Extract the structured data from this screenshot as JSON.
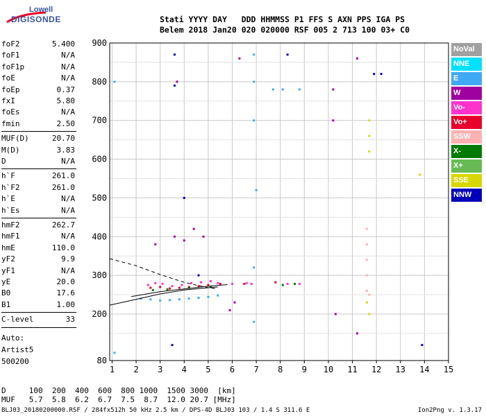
{
  "logo": {
    "line1": "Lowell",
    "line2": "DIGISONDE"
  },
  "header": {
    "labels": [
      "Stati",
      "YYYY",
      "DAY",
      "DDD",
      "HHMMSS",
      "P1",
      "FFS",
      "S",
      "AXN",
      "PPS",
      "IGA",
      "PS"
    ],
    "values": [
      "Belem",
      "2018",
      "Jan20",
      "020",
      "020000",
      "RSF",
      "005",
      "2",
      "713",
      "100",
      "03+",
      "C0"
    ]
  },
  "params": {
    "group1": [
      {
        "k": "foF2",
        "v": "5.400"
      },
      {
        "k": "foF1",
        "v": "N/A"
      },
      {
        "k": "foF1p",
        "v": "N/A"
      },
      {
        "k": "foE",
        "v": "N/A"
      },
      {
        "k": "foEp",
        "v": "0.37"
      },
      {
        "k": "fxI",
        "v": "5.80"
      },
      {
        "k": "foEs",
        "v": "N/A"
      },
      {
        "k": "fmin",
        "v": "2.50"
      }
    ],
    "group2": [
      {
        "k": "MUF(D)",
        "v": "20.70"
      },
      {
        "k": "M(D)",
        "v": "3.83"
      },
      {
        "k": "D",
        "v": "N/A"
      }
    ],
    "group3": [
      {
        "k": "h`F",
        "v": "261.0"
      },
      {
        "k": "h`F2",
        "v": "261.0"
      },
      {
        "k": "h`E",
        "v": "N/A"
      },
      {
        "k": "h`Es",
        "v": "N/A"
      }
    ],
    "group4": [
      {
        "k": "hmF2",
        "v": "262.7"
      },
      {
        "k": "hmF1",
        "v": "N/A"
      },
      {
        "k": "hmE",
        "v": "110.0"
      },
      {
        "k": "yF2",
        "v": "9.9"
      },
      {
        "k": "yF1",
        "v": "N/A"
      },
      {
        "k": "yE",
        "v": "20.0"
      },
      {
        "k": "B0",
        "v": "17.6"
      },
      {
        "k": "B1",
        "v": "1.00"
      }
    ],
    "group5": [
      {
        "k": "C-level",
        "v": "33"
      }
    ]
  },
  "auto": {
    "label": "Auto:",
    "artist": "Artist5",
    "version": "500200"
  },
  "legend": [
    {
      "label": "NoVal",
      "color": "#a0a0a0"
    },
    {
      "label": "NNE",
      "color": "#00e0ff"
    },
    {
      "label": "E",
      "color": "#3fa9f5"
    },
    {
      "label": "W",
      "color": "#a000a0"
    },
    {
      "label": "Vo-",
      "color": "#ff33cc"
    },
    {
      "label": "Vo+",
      "color": "#e8002a"
    },
    {
      "label": "SSW",
      "color": "#ffb0b0"
    },
    {
      "label": "X-",
      "color": "#007a00"
    },
    {
      "label": "X+",
      "color": "#66bb55"
    },
    {
      "label": "SSE",
      "color": "#d8d800"
    },
    {
      "label": "NNW",
      "color": "#0000b8"
    }
  ],
  "footer": {
    "row1_label": "D",
    "row1_values": [
      "100",
      "200",
      "400",
      "600",
      "800",
      "1000",
      "1500",
      "3000",
      "[km]"
    ],
    "row2_label": "MUF",
    "row2_values": [
      "5.7",
      "5.8",
      "6.2",
      "6.7",
      "7.5",
      "8.7",
      "12.0",
      "20.7",
      "[MHz]"
    ],
    "file_line": "BLJ03_20180200000.RSF / 284fx512h 50 kHz 2.5 km / DPS-4D BLJ03 103 / 1.4 S 311.6 E",
    "tool": "Ion2Png v. 1.3.17"
  },
  "chart_data": {
    "type": "scatter",
    "title": "",
    "xlabel": "",
    "ylabel": "",
    "xlim": [
      0.9,
      15.0
    ],
    "ylim": [
      80,
      900
    ],
    "x_ticks": [
      1,
      2,
      3,
      4,
      5,
      6,
      7,
      8,
      9,
      10,
      11,
      12,
      13,
      14,
      15
    ],
    "y_ticks": [
      80,
      200,
      300,
      400,
      500,
      600,
      700,
      800,
      900
    ],
    "grid": true,
    "series": [
      {
        "name": "E",
        "color": "#3fa9f5",
        "points": [
          [
            2.2,
            240
          ],
          [
            2.6,
            238
          ],
          [
            3.0,
            235
          ],
          [
            3.4,
            236
          ],
          [
            3.8,
            238
          ],
          [
            4.2,
            240
          ],
          [
            4.6,
            242
          ],
          [
            5.0,
            244
          ],
          [
            5.4,
            248
          ],
          [
            6.9,
            870
          ],
          [
            6.9,
            800
          ],
          [
            6.9,
            700
          ],
          [
            7.0,
            520
          ],
          [
            6.9,
            320
          ],
          [
            6.9,
            180
          ],
          [
            7.7,
            780
          ],
          [
            8.1,
            780
          ],
          [
            8.8,
            780
          ],
          [
            1.1,
            800
          ],
          [
            1.1,
            100
          ]
        ]
      },
      {
        "name": "W",
        "color": "#a000a0",
        "points": [
          [
            2.8,
            380
          ],
          [
            3.6,
            400
          ],
          [
            4.0,
            390
          ],
          [
            4.4,
            420
          ],
          [
            4.8,
            400
          ],
          [
            5.9,
            210
          ],
          [
            6.1,
            230
          ],
          [
            6.3,
            860
          ],
          [
            10.2,
            700
          ],
          [
            10.2,
            780
          ],
          [
            10.3,
            200
          ],
          [
            11.2,
            860
          ],
          [
            11.2,
            150
          ],
          [
            3.7,
            800
          ]
        ]
      },
      {
        "name": "Vo-",
        "color": "#ff33cc",
        "points": [
          [
            2.5,
            275
          ],
          [
            2.8,
            280
          ],
          [
            3.1,
            278
          ],
          [
            3.5,
            272
          ],
          [
            3.9,
            275
          ],
          [
            4.3,
            280
          ],
          [
            4.7,
            282
          ],
          [
            5.1,
            285
          ],
          [
            5.4,
            280
          ],
          [
            6.0,
            278
          ],
          [
            6.6,
            280
          ],
          [
            6.8,
            278
          ],
          [
            8.3,
            278
          ],
          [
            8.8,
            278
          ]
        ]
      },
      {
        "name": "Vo+",
        "color": "#e8002a",
        "points": [
          [
            2.6,
            268
          ],
          [
            3.0,
            270
          ],
          [
            3.4,
            266
          ],
          [
            3.8,
            268
          ],
          [
            4.2,
            270
          ],
          [
            4.6,
            272
          ],
          [
            5.0,
            275
          ],
          [
            5.5,
            278
          ],
          [
            6.5,
            278
          ],
          [
            7.8,
            282
          ]
        ]
      },
      {
        "name": "SSW",
        "color": "#ffb0b0",
        "points": [
          [
            11.6,
            420
          ],
          [
            11.6,
            380
          ],
          [
            11.6,
            340
          ],
          [
            11.6,
            300
          ],
          [
            11.6,
            260
          ],
          [
            11.7,
            250
          ]
        ]
      },
      {
        "name": "X-",
        "color": "#007a00",
        "points": [
          [
            2.7,
            262
          ],
          [
            3.3,
            264
          ],
          [
            4.2,
            268
          ],
          [
            5.1,
            270
          ],
          [
            8.1,
            275
          ],
          [
            8.6,
            278
          ]
        ]
      },
      {
        "name": "SSE",
        "color": "#d8d800",
        "points": [
          [
            11.7,
            700
          ],
          [
            11.7,
            660
          ],
          [
            11.7,
            620
          ],
          [
            11.6,
            230
          ],
          [
            11.7,
            200
          ],
          [
            13.8,
            560
          ]
        ]
      },
      {
        "name": "NNW",
        "color": "#0000b8",
        "points": [
          [
            3.6,
            870
          ],
          [
            3.6,
            790
          ],
          [
            4.0,
            500
          ],
          [
            4.6,
            300
          ],
          [
            8.3,
            870
          ],
          [
            11.9,
            820
          ],
          [
            12.2,
            820
          ],
          [
            3.5,
            120
          ],
          [
            13.9,
            120
          ]
        ]
      }
    ],
    "fitted_curves": [
      {
        "style": "solid",
        "points": [
          [
            0.9,
            223
          ],
          [
            2.0,
            238
          ],
          [
            3.0,
            252
          ],
          [
            4.0,
            262
          ],
          [
            5.0,
            268
          ],
          [
            5.4,
            270
          ]
        ]
      },
      {
        "style": "dashed",
        "points": [
          [
            0.9,
            343
          ],
          [
            2.0,
            325
          ],
          [
            3.0,
            302
          ],
          [
            4.0,
            282
          ],
          [
            5.0,
            268
          ],
          [
            5.4,
            265
          ]
        ]
      },
      {
        "style": "solid",
        "points": [
          [
            1.8,
            245
          ],
          [
            3.0,
            258
          ],
          [
            4.0,
            265
          ],
          [
            5.0,
            272
          ],
          [
            5.8,
            276
          ]
        ]
      }
    ]
  }
}
